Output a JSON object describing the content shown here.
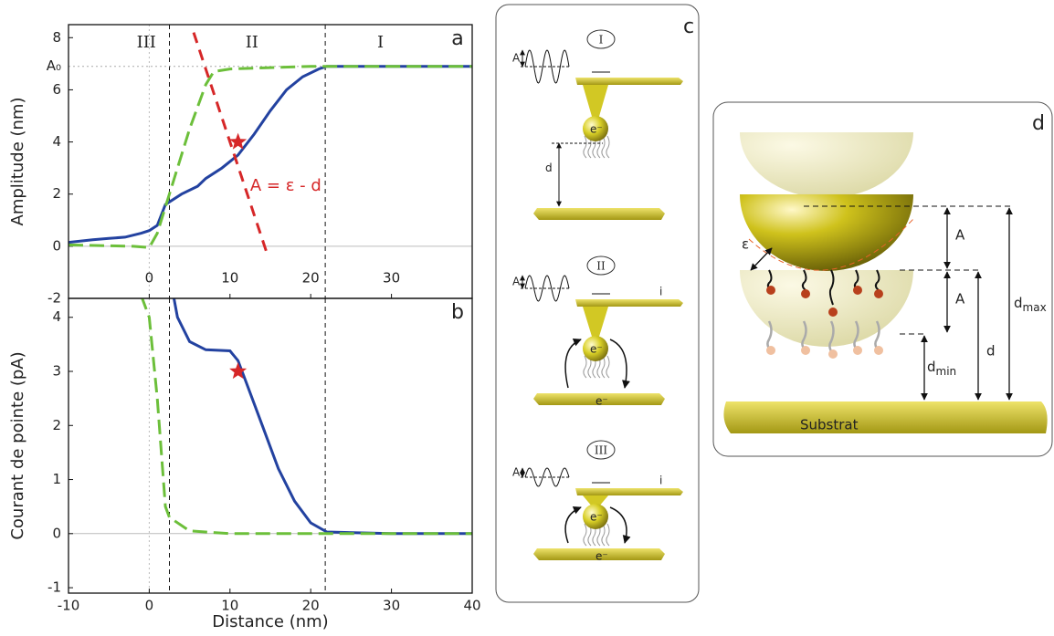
{
  "chart_data": [
    {
      "type": "line",
      "label": "a",
      "ylabel": "Amplitude (nm)",
      "xlim": [
        -10,
        40
      ],
      "ylim": [
        -2,
        8.5
      ],
      "xticks": [
        0,
        10,
        20,
        30
      ],
      "yticks": [
        -2,
        0,
        2,
        4,
        6,
        {
          "value": 6.9,
          "label": "A₀"
        },
        8
      ],
      "regions": [
        "III",
        "II",
        "I"
      ],
      "boundaries": [
        0,
        2.5,
        21.8
      ],
      "annotation": "A = ε - d",
      "series": [
        {
          "color": "#2342a0",
          "dash": "none",
          "x": [
            -10,
            -7,
            -5,
            -3,
            -1,
            0,
            1,
            2,
            4,
            6,
            7,
            9,
            11,
            13,
            15,
            17,
            19,
            21,
            22,
            30,
            40
          ],
          "values": [
            0.15,
            0.25,
            0.3,
            0.35,
            0.5,
            0.6,
            0.8,
            1.6,
            2.0,
            2.3,
            2.6,
            3.0,
            3.5,
            4.3,
            5.2,
            6.0,
            6.5,
            6.8,
            6.9,
            6.9,
            6.9
          ]
        },
        {
          "color": "#6cbf3a",
          "dash": "16 7",
          "x": [
            -10,
            -2,
            0,
            1,
            3,
            5,
            7,
            8,
            10,
            20,
            40
          ],
          "values": [
            0.05,
            0,
            -0.05,
            0.5,
            2.5,
            4.5,
            6.2,
            6.7,
            6.8,
            6.9,
            6.9
          ]
        },
        {
          "color": "#d62728",
          "dash": "12 8",
          "x": [
            5.5,
            14.5
          ],
          "values": [
            8.2,
            -0.2
          ]
        }
      ],
      "stars": {
        "color": "#d62728",
        "x": [
          11
        ],
        "values": [
          4
        ]
      }
    },
    {
      "type": "line",
      "label": "b",
      "ylabel": "Courant de pointe (pA)",
      "xlabel": "Distance (nm)",
      "xlim": [
        -10,
        40
      ],
      "ylim": [
        -1.1,
        4.35
      ],
      "xticks": [
        -10,
        0,
        10,
        20,
        30,
        40
      ],
      "yticks": [
        -1,
        0,
        1,
        2,
        3,
        4
      ],
      "boundaries": [
        0,
        2.5,
        21.8
      ],
      "series": [
        {
          "color": "#2342a0",
          "dash": "none",
          "x": [
            3,
            3.5,
            5,
            7,
            10,
            11,
            12,
            14,
            16,
            18,
            20,
            22,
            30,
            40
          ],
          "values": [
            4.4,
            4.0,
            3.55,
            3.4,
            3.38,
            3.2,
            2.8,
            2.0,
            1.2,
            0.6,
            0.2,
            0.03,
            0,
            0
          ]
        },
        {
          "color": "#6cbf3a",
          "dash": "16 7",
          "x": [
            -1,
            0,
            1,
            2,
            2.5,
            5,
            10,
            40
          ],
          "values": [
            4.4,
            4.0,
            2.5,
            0.5,
            0.3,
            0.05,
            0,
            0
          ]
        }
      ],
      "stars": {
        "color": "#d62728",
        "x": [
          11
        ],
        "values": [
          3
        ]
      }
    }
  ],
  "panel_c": {
    "label": "c",
    "stages": [
      {
        "label": "I",
        "amplitude": "A",
        "electron": "e⁻",
        "distance": "d"
      },
      {
        "label": "II",
        "amplitude": "A",
        "current": "i",
        "electron": "e⁻",
        "substrate_electron": "e⁻"
      },
      {
        "label": "III",
        "amplitude": "A",
        "current": "i",
        "electron": "e⁻",
        "substrate_electron": "e⁻"
      }
    ]
  },
  "panel_d": {
    "label": "d",
    "epsilon": "ε",
    "amp_upper": "A",
    "amp_lower": "A",
    "d": "d",
    "d_max": {
      "base": "d",
      "sub": "max"
    },
    "d_min": {
      "base": "d",
      "sub": "min"
    },
    "substrate": "Substrat"
  }
}
